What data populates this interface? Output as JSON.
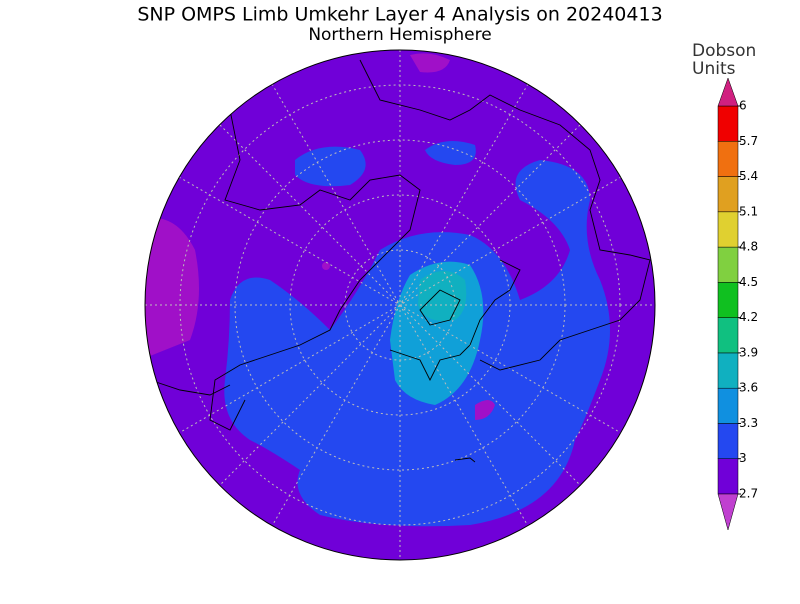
{
  "title": "SNP OMPS Limb Umkehr Layer 4 Analysis on 20240413",
  "subtitle": "Northern Hemisphere",
  "colorbar": {
    "label": [
      "Dobson",
      "Units"
    ],
    "clim": [
      2.7,
      6
    ],
    "ticks": [
      2.7,
      3,
      3.3,
      3.6,
      3.9,
      4.2,
      4.5,
      4.8,
      5.1,
      5.4,
      5.7,
      6
    ],
    "colors": [
      "#7000d8",
      "#2448f0",
      "#1090e0",
      "#10b0c0",
      "#10c080",
      "#10c020",
      "#80d040",
      "#e0d030",
      "#e0a020",
      "#f07010",
      "#f00000"
    ],
    "under_color": "#c040d0",
    "over_color": "#d02080"
  }
}
